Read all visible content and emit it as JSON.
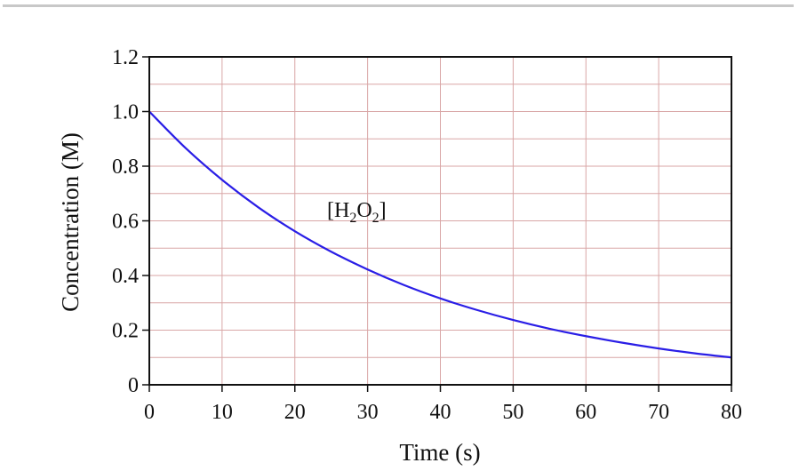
{
  "chart_data": {
    "type": "line",
    "title": "",
    "xlabel": "Time (s)",
    "ylabel": "Concentration (M)",
    "xlim": [
      0,
      80
    ],
    "ylim": [
      0,
      1.2
    ],
    "xticks": [
      "0",
      "10",
      "20",
      "30",
      "40",
      "50",
      "60",
      "70",
      "80"
    ],
    "yticks": [
      "0",
      "0.2",
      "0.4",
      "0.6",
      "0.8",
      "1.0",
      "1.2"
    ],
    "grid": true,
    "grid_color": "#d9a6a6",
    "series": [
      {
        "name": "[H2O2]",
        "color": "#2a1ee6",
        "x": [
          0,
          5,
          10,
          15,
          20,
          25,
          30,
          35,
          40,
          45,
          50,
          55,
          60,
          65,
          70,
          75,
          80
        ],
        "y": [
          1.0,
          0.866,
          0.75,
          0.649,
          0.562,
          0.487,
          0.422,
          0.365,
          0.316,
          0.274,
          0.237,
          0.205,
          0.178,
          0.154,
          0.133,
          0.115,
          0.1
        ]
      }
    ],
    "annotation": {
      "base1": "[H",
      "sub1": "2",
      "base2": "O",
      "sub2": "2",
      "base3": "]"
    }
  }
}
